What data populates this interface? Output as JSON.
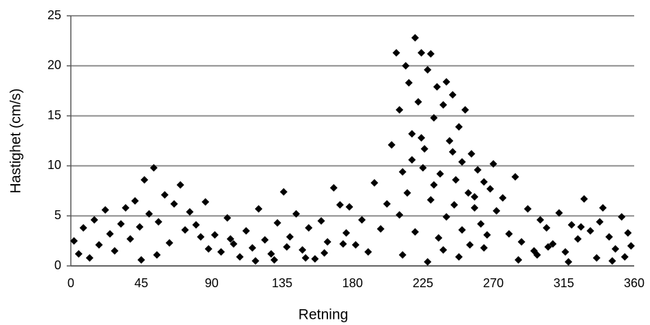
{
  "chart_data": {
    "type": "scatter",
    "x_label": "Retning",
    "y_label": "Hastighet (cm/s)",
    "xlim": [
      0,
      360
    ],
    "xticks": [
      0,
      45,
      90,
      135,
      180,
      225,
      270,
      315,
      360
    ],
    "ylim": [
      0,
      25
    ],
    "yticks": [
      0,
      5,
      10,
      15,
      20,
      25
    ],
    "grid": true,
    "color": "#000000",
    "x": [
      2,
      5,
      8,
      12,
      15,
      18,
      22,
      25,
      28,
      32,
      35,
      38,
      41,
      44,
      47,
      50,
      53,
      56,
      60,
      63,
      66,
      70,
      73,
      76,
      80,
      83,
      86,
      88,
      45,
      55,
      92,
      96,
      100,
      104,
      108,
      112,
      116,
      120,
      124,
      128,
      132,
      136,
      140,
      144,
      148,
      152,
      156,
      160,
      164,
      168,
      172,
      176,
      178,
      118,
      138,
      150,
      102,
      130,
      162,
      174,
      182,
      186,
      190,
      194,
      198,
      202,
      205,
      208,
      210,
      212,
      214,
      216,
      218,
      220,
      222,
      224,
      226,
      228,
      230,
      232,
      234,
      236,
      238,
      240,
      242,
      244,
      246,
      248,
      250,
      252,
      254,
      256,
      258,
      260,
      262,
      264,
      266,
      268,
      270,
      272,
      210,
      215,
      220,
      225,
      230,
      235,
      240,
      245,
      250,
      255,
      212,
      218,
      224,
      228,
      232,
      238,
      244,
      248,
      258,
      264,
      276,
      280,
      284,
      288,
      292,
      296,
      300,
      304,
      308,
      312,
      316,
      320,
      324,
      328,
      332,
      336,
      340,
      344,
      348,
      352,
      356,
      358,
      286,
      298,
      318,
      326,
      338,
      346,
      354,
      305
    ],
    "values": [
      2.5,
      1.2,
      3.8,
      0.8,
      4.6,
      2.1,
      5.6,
      3.2,
      1.5,
      4.2,
      5.8,
      2.7,
      6.5,
      3.9,
      8.6,
      5.2,
      9.8,
      4.4,
      7.1,
      2.3,
      6.2,
      8.1,
      3.6,
      5.4,
      4.1,
      2.9,
      6.4,
      1.7,
      0.6,
      1.1,
      3.1,
      1.4,
      4.8,
      2.2,
      0.9,
      3.5,
      1.8,
      5.7,
      2.6,
      1.2,
      4.3,
      7.4,
      2.9,
      5.2,
      1.6,
      3.8,
      0.7,
      4.5,
      2.4,
      7.8,
      6.1,
      3.3,
      5.9,
      0.5,
      1.9,
      0.8,
      2.7,
      0.6,
      1.3,
      2.2,
      2.1,
      4.6,
      1.4,
      8.3,
      3.7,
      6.2,
      12.1,
      21.3,
      15.6,
      9.4,
      20.0,
      18.3,
      13.2,
      22.8,
      16.4,
      21.3,
      11.7,
      19.6,
      21.2,
      14.8,
      17.9,
      9.2,
      16.1,
      18.4,
      12.5,
      17.1,
      8.6,
      13.9,
      10.4,
      15.6,
      7.3,
      11.2,
      5.8,
      9.6,
      4.2,
      8.4,
      3.1,
      7.7,
      10.2,
      5.5,
      5.1,
      7.3,
      3.4,
      9.8,
      6.6,
      2.8,
      4.9,
      6.1,
      3.6,
      2.1,
      1.1,
      10.6,
      12.8,
      0.4,
      8.1,
      1.6,
      11.4,
      0.9,
      6.9,
      1.8,
      6.8,
      3.2,
      8.9,
      2.4,
      5.7,
      1.5,
      4.6,
      3.8,
      2.2,
      5.3,
      1.4,
      4.1,
      2.7,
      6.7,
      3.5,
      0.8,
      5.8,
      2.9,
      1.7,
      4.9,
      3.3,
      2.0,
      0.6,
      1.1,
      0.4,
      3.9,
      4.4,
      0.5,
      0.9,
      1.9
    ]
  }
}
